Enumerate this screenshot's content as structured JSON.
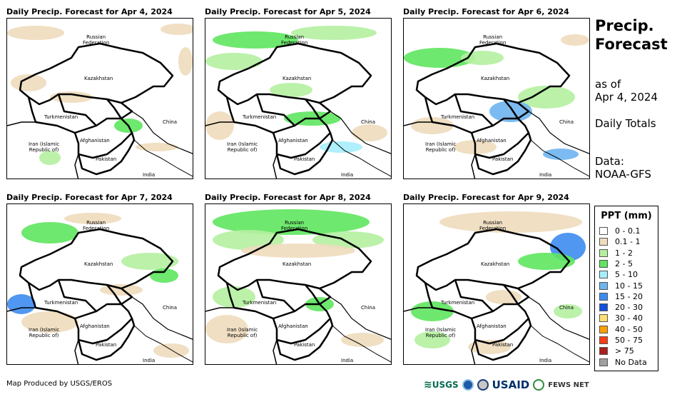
{
  "panels": [
    {
      "title": "Daily Precip. Forecast for Apr 4, 2024"
    },
    {
      "title": "Daily Precip. Forecast for Apr 5, 2024"
    },
    {
      "title": "Daily Precip. Forecast for Apr 6, 2024"
    },
    {
      "title": "Daily Precip. Forecast for Apr 7, 2024"
    },
    {
      "title": "Daily Precip. Forecast for Apr 8, 2024"
    },
    {
      "title": "Daily Precip. Forecast for Apr 9, 2024"
    }
  ],
  "map_labels": {
    "russia": "Russian\nFederation",
    "kazakhstan": "Kazakhstan",
    "turkmenistan": "Turkmenistan",
    "china": "China",
    "afghanistan": "Afghanistan",
    "iran": "Iran  (Islamic\nRepublic of)",
    "pakistan": "Pakistan",
    "india": "India"
  },
  "sidebar": {
    "title_line1": "Precip.",
    "title_line2": "Forecast",
    "as_of_line1": "as of",
    "as_of_line2": "Apr 4, 2024",
    "totals": "Daily Totals",
    "data_line1": "Data:",
    "data_line2": "NOAA-GFS"
  },
  "legend": {
    "title": "PPT (mm)",
    "items": [
      {
        "label": "0 - 0.1",
        "color": "#ffffff"
      },
      {
        "label": "0.1 - 1",
        "color": "#eedcbc"
      },
      {
        "label": "1 - 2",
        "color": "#b4f0a0"
      },
      {
        "label": "2 - 5",
        "color": "#5ee65e"
      },
      {
        "label": "5 - 10",
        "color": "#a6eefc"
      },
      {
        "label": "10 - 15",
        "color": "#6eb4f0"
      },
      {
        "label": "15 - 20",
        "color": "#3c8cf0"
      },
      {
        "label": "20 - 30",
        "color": "#1450dc"
      },
      {
        "label": "30 - 40",
        "color": "#fce070"
      },
      {
        "label": "40 - 50",
        "color": "#fca000"
      },
      {
        "label": "50 - 75",
        "color": "#fc3c14"
      },
      {
        "label": "> 75",
        "color": "#aa1e1e"
      },
      {
        "label": "No Data",
        "color": "#a0a0a0"
      }
    ]
  },
  "footer": "Map Produced by USGS/EROS",
  "logos": {
    "usgs": "USGS",
    "usaid": "USAID",
    "fews": "FEWS NET"
  }
}
